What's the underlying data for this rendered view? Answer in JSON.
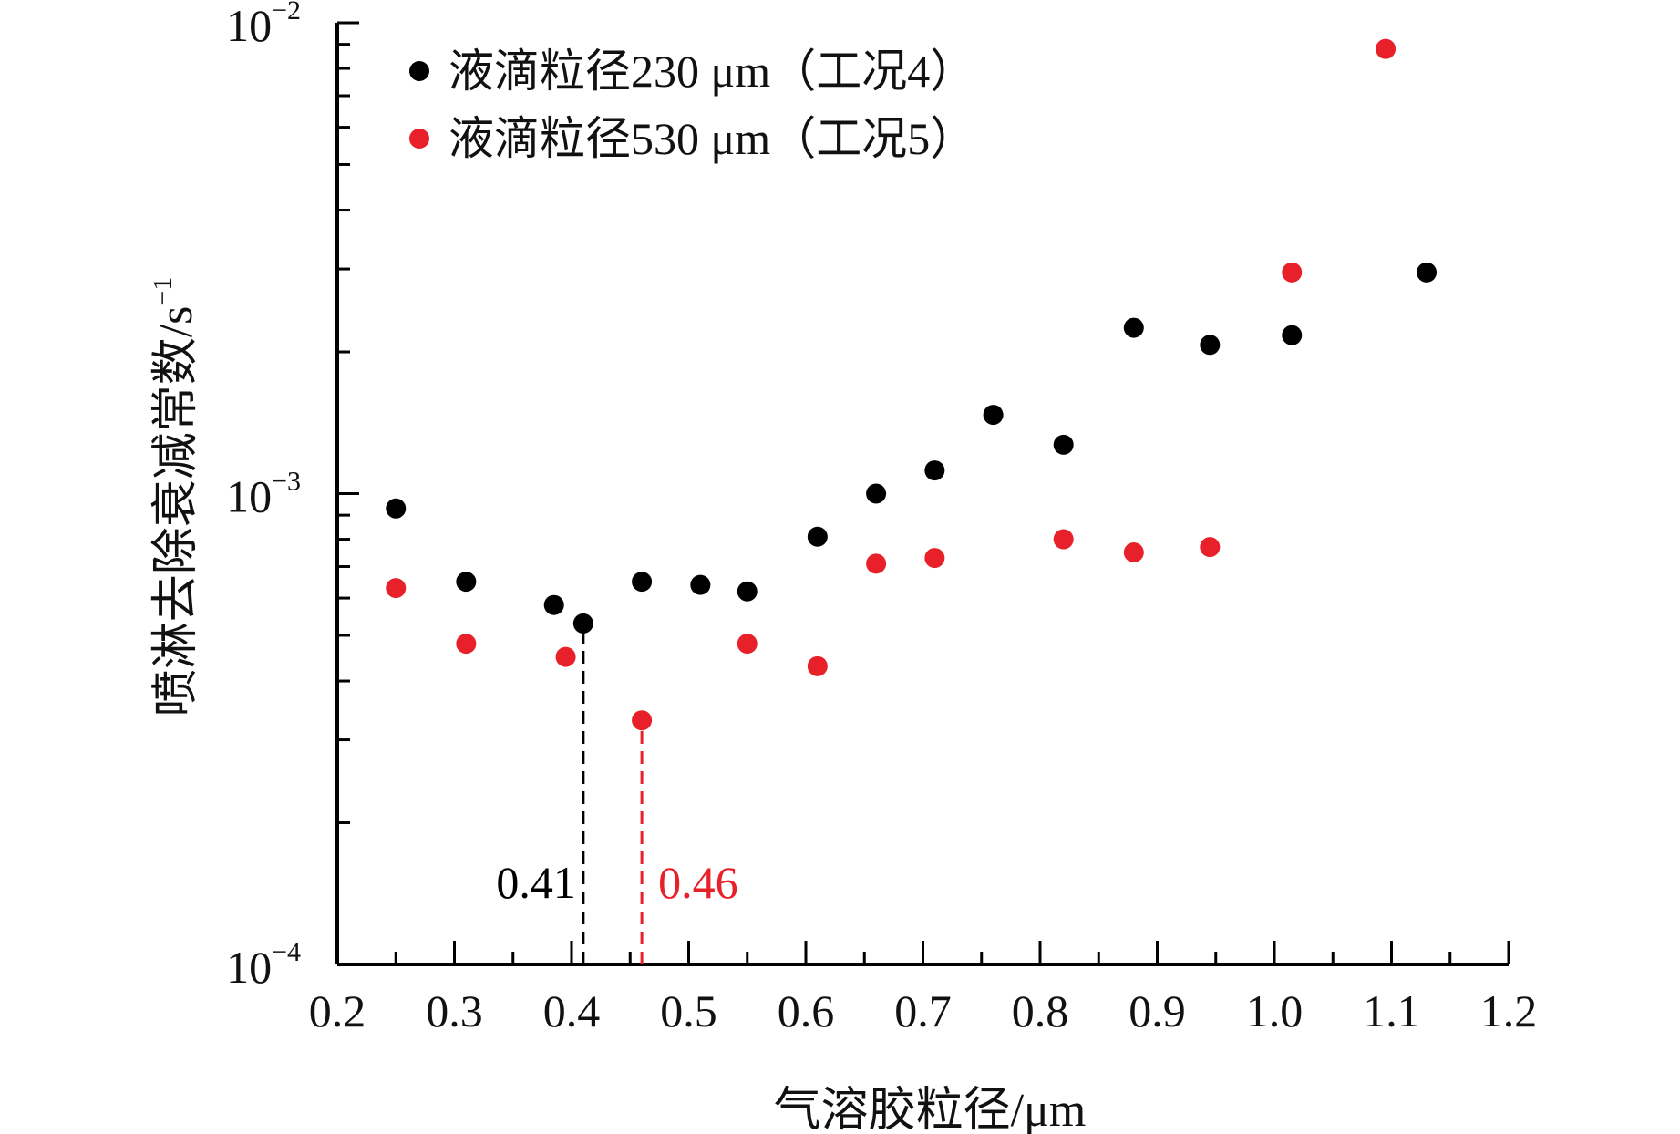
{
  "chart_data": {
    "type": "scatter",
    "title": "",
    "xlabel": "气溶胶粒径/μm",
    "ylabel": "喷淋去除衰减常数/s",
    "ylabel_sup": "−1",
    "xlim": [
      0.2,
      1.2
    ],
    "ylim": [
      0.0001,
      0.01
    ],
    "yscale": "log",
    "grid": false,
    "legend_position": "top-left",
    "x_ticks": [
      "0.2",
      "0.3",
      "0.4",
      "0.5",
      "0.6",
      "0.7",
      "0.8",
      "0.9",
      "1.0",
      "1.1",
      "1.2"
    ],
    "y_ticks": [
      {
        "base": "10",
        "exp": "−4"
      },
      {
        "base": "10",
        "exp": "−3"
      },
      {
        "base": "10",
        "exp": "−2"
      }
    ],
    "series": [
      {
        "name": "液滴粒径230 μm（工况4）",
        "color": "#000000",
        "points": [
          [
            0.25,
            0.00093
          ],
          [
            0.31,
            0.00065
          ],
          [
            0.385,
            0.00058
          ],
          [
            0.41,
            0.00053
          ],
          [
            0.46,
            0.00065
          ],
          [
            0.51,
            0.00064
          ],
          [
            0.55,
            0.00062
          ],
          [
            0.61,
            0.00081
          ],
          [
            0.66,
            0.001
          ],
          [
            0.71,
            0.00112
          ],
          [
            0.76,
            0.00147
          ],
          [
            0.82,
            0.00127
          ],
          [
            0.88,
            0.00225
          ],
          [
            0.945,
            0.00207
          ],
          [
            1.015,
            0.00217
          ],
          [
            1.13,
            0.00295
          ]
        ]
      },
      {
        "name": "液滴粒径530 μm（工况5）",
        "color": "#e8202a",
        "points": [
          [
            0.25,
            0.00063
          ],
          [
            0.31,
            0.00048
          ],
          [
            0.395,
            0.00045
          ],
          [
            0.46,
            0.00033
          ],
          [
            0.55,
            0.00048
          ],
          [
            0.61,
            0.00043
          ],
          [
            0.66,
            0.00071
          ],
          [
            0.71,
            0.00073
          ],
          [
            0.82,
            0.0008
          ],
          [
            0.88,
            0.00075
          ],
          [
            0.945,
            0.00077
          ],
          [
            1.015,
            0.00295
          ],
          [
            1.095,
            0.0088
          ]
        ]
      }
    ],
    "annotations": [
      {
        "text": "0.41",
        "x": 0.41,
        "y_from": 0.0001,
        "y_to": 0.00053,
        "color": "#000000",
        "side": "left"
      },
      {
        "text": "0.46",
        "x": 0.46,
        "y_from": 0.0001,
        "y_to": 0.00033,
        "color": "#e8202a",
        "side": "right"
      }
    ]
  }
}
